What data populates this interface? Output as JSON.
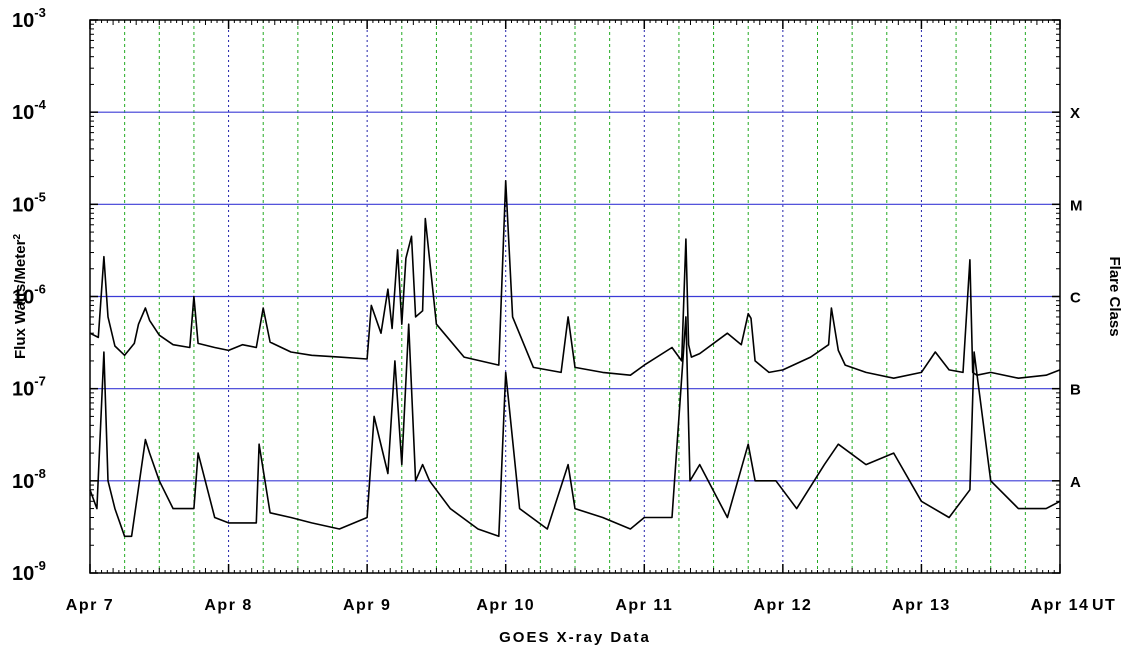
{
  "chart_data": {
    "type": "line",
    "title": "",
    "xlabel": "GOES X-ray Data",
    "x_unit_label": "UT",
    "ylabel_base": "Flux Watts/Meter",
    "ylabel_exp": "2",
    "right_axis_label": "Flare Class",
    "yscale": "log",
    "ylim": [
      1e-09,
      0.001
    ],
    "y_ticks": [
      {
        "base": "10",
        "exp": "-9"
      },
      {
        "base": "10",
        "exp": "-8"
      },
      {
        "base": "10",
        "exp": "-7"
      },
      {
        "base": "10",
        "exp": "-6"
      },
      {
        "base": "10",
        "exp": "-5"
      },
      {
        "base": "10",
        "exp": "-4"
      },
      {
        "base": "10",
        "exp": "-3"
      }
    ],
    "x_ticks": [
      "Apr 7",
      "Apr 8",
      "Apr 9",
      "Apr 10",
      "Apr 11",
      "Apr 12",
      "Apr 13",
      "Apr 14"
    ],
    "flare_classes": [
      {
        "label": "A",
        "flux": 1e-08
      },
      {
        "label": "B",
        "flux": 1e-07
      },
      {
        "label": "C",
        "flux": 1e-06
      },
      {
        "label": "M",
        "flux": 1e-05
      },
      {
        "label": "X",
        "flux": 0.0001
      }
    ],
    "grid": true,
    "colors": {
      "series": "#000000",
      "class_lines": "#3b3bd6",
      "day_grid": "#2222aa",
      "sub_grid": "#22aa22"
    },
    "series": [
      {
        "channel": "long",
        "x_days": [
          0,
          0.06,
          0.1,
          0.13,
          0.18,
          0.25,
          0.32,
          0.35,
          0.4,
          0.43,
          0.5,
          0.6,
          0.72,
          0.75,
          0.78,
          0.9,
          1.0,
          1.1,
          1.2,
          1.25,
          1.3,
          1.45,
          1.6,
          1.8,
          2.0,
          2.03,
          2.1,
          2.15,
          2.18,
          2.22,
          2.25,
          2.28,
          2.32,
          2.35,
          2.4,
          2.42,
          2.5,
          2.7,
          2.95,
          3.0,
          3.05,
          3.2,
          3.4,
          3.45,
          3.5,
          3.7,
          3.9,
          4.0,
          4.2,
          4.27,
          4.3,
          4.32,
          4.34,
          4.4,
          4.6,
          4.7,
          4.75,
          4.77,
          4.8,
          4.9,
          5.0,
          5.2,
          5.33,
          5.35,
          5.4,
          5.45,
          5.6,
          5.8,
          6.0,
          6.1,
          6.2,
          6.3,
          6.35,
          6.37,
          6.4,
          6.5,
          6.7,
          6.9,
          7.0
        ],
        "y": [
          4e-07,
          3.6e-07,
          2.7e-06,
          6e-07,
          2.9e-07,
          2.3e-07,
          3.1e-07,
          5e-07,
          7.5e-07,
          5.5e-07,
          3.8e-07,
          3e-07,
          2.8e-07,
          1e-06,
          3.1e-07,
          2.8e-07,
          2.6e-07,
          3e-07,
          2.8e-07,
          7.5e-07,
          3.2e-07,
          2.5e-07,
          2.3e-07,
          2.2e-07,
          2.1e-07,
          8e-07,
          4e-07,
          1.2e-06,
          4.5e-07,
          3.2e-06,
          5e-07,
          2.6e-06,
          4.5e-06,
          6e-07,
          7e-07,
          7e-06,
          5e-07,
          2.2e-07,
          1.8e-07,
          1.8e-05,
          6e-07,
          1.7e-07,
          1.5e-07,
          6e-07,
          1.7e-07,
          1.5e-07,
          1.4e-07,
          1.8e-07,
          2.8e-07,
          2e-07,
          4.2e-06,
          3e-07,
          2.2e-07,
          2.4e-07,
          4e-07,
          3e-07,
          6.5e-07,
          5.8e-07,
          2e-07,
          1.5e-07,
          1.6e-07,
          2.2e-07,
          3e-07,
          7.5e-07,
          2.6e-07,
          1.8e-07,
          1.5e-07,
          1.3e-07,
          1.5e-07,
          2.5e-07,
          1.6e-07,
          1.5e-07,
          2.5e-06,
          1.5e-07,
          1.4e-07,
          1.5e-07,
          1.3e-07,
          1.4e-07,
          1.6e-07
        ]
      },
      {
        "channel": "short",
        "x_days": [
          0,
          0.05,
          0.1,
          0.13,
          0.18,
          0.25,
          0.3,
          0.4,
          0.43,
          0.5,
          0.6,
          0.75,
          0.78,
          0.9,
          1.0,
          1.2,
          1.22,
          1.3,
          1.45,
          1.6,
          1.8,
          2.0,
          2.05,
          2.15,
          2.2,
          2.25,
          2.3,
          2.35,
          2.4,
          2.45,
          2.6,
          2.8,
          2.95,
          3.0,
          3.1,
          3.3,
          3.45,
          3.5,
          3.7,
          3.9,
          4.0,
          4.2,
          4.3,
          4.33,
          4.4,
          4.6,
          4.75,
          4.8,
          4.95,
          5.1,
          5.3,
          5.4,
          5.6,
          5.8,
          6.0,
          6.2,
          6.35,
          6.38,
          6.5,
          6.7,
          6.9,
          7.0
        ],
        "y": [
          8e-09,
          5e-09,
          2.5e-07,
          1e-08,
          5e-09,
          2.5e-09,
          2.5e-09,
          2.8e-08,
          2e-08,
          1e-08,
          5e-09,
          5e-09,
          2e-08,
          4e-09,
          3.5e-09,
          3.5e-09,
          2.5e-08,
          4.5e-09,
          4e-09,
          3.5e-09,
          3e-09,
          4e-09,
          5e-08,
          1.2e-08,
          2e-07,
          1.5e-08,
          5e-07,
          1e-08,
          1.5e-08,
          1e-08,
          5e-09,
          3e-09,
          2.5e-09,
          1.5e-07,
          5e-09,
          3e-09,
          1.5e-08,
          5e-09,
          4e-09,
          3e-09,
          4e-09,
          4e-09,
          6e-07,
          1e-08,
          1.5e-08,
          4e-09,
          2.5e-08,
          1e-08,
          1e-08,
          5e-09,
          1.5e-08,
          2.5e-08,
          1.5e-08,
          2e-08,
          6e-09,
          4e-09,
          8e-09,
          2.5e-07,
          1e-08,
          5e-09,
          5e-09,
          6e-09
        ]
      }
    ]
  }
}
